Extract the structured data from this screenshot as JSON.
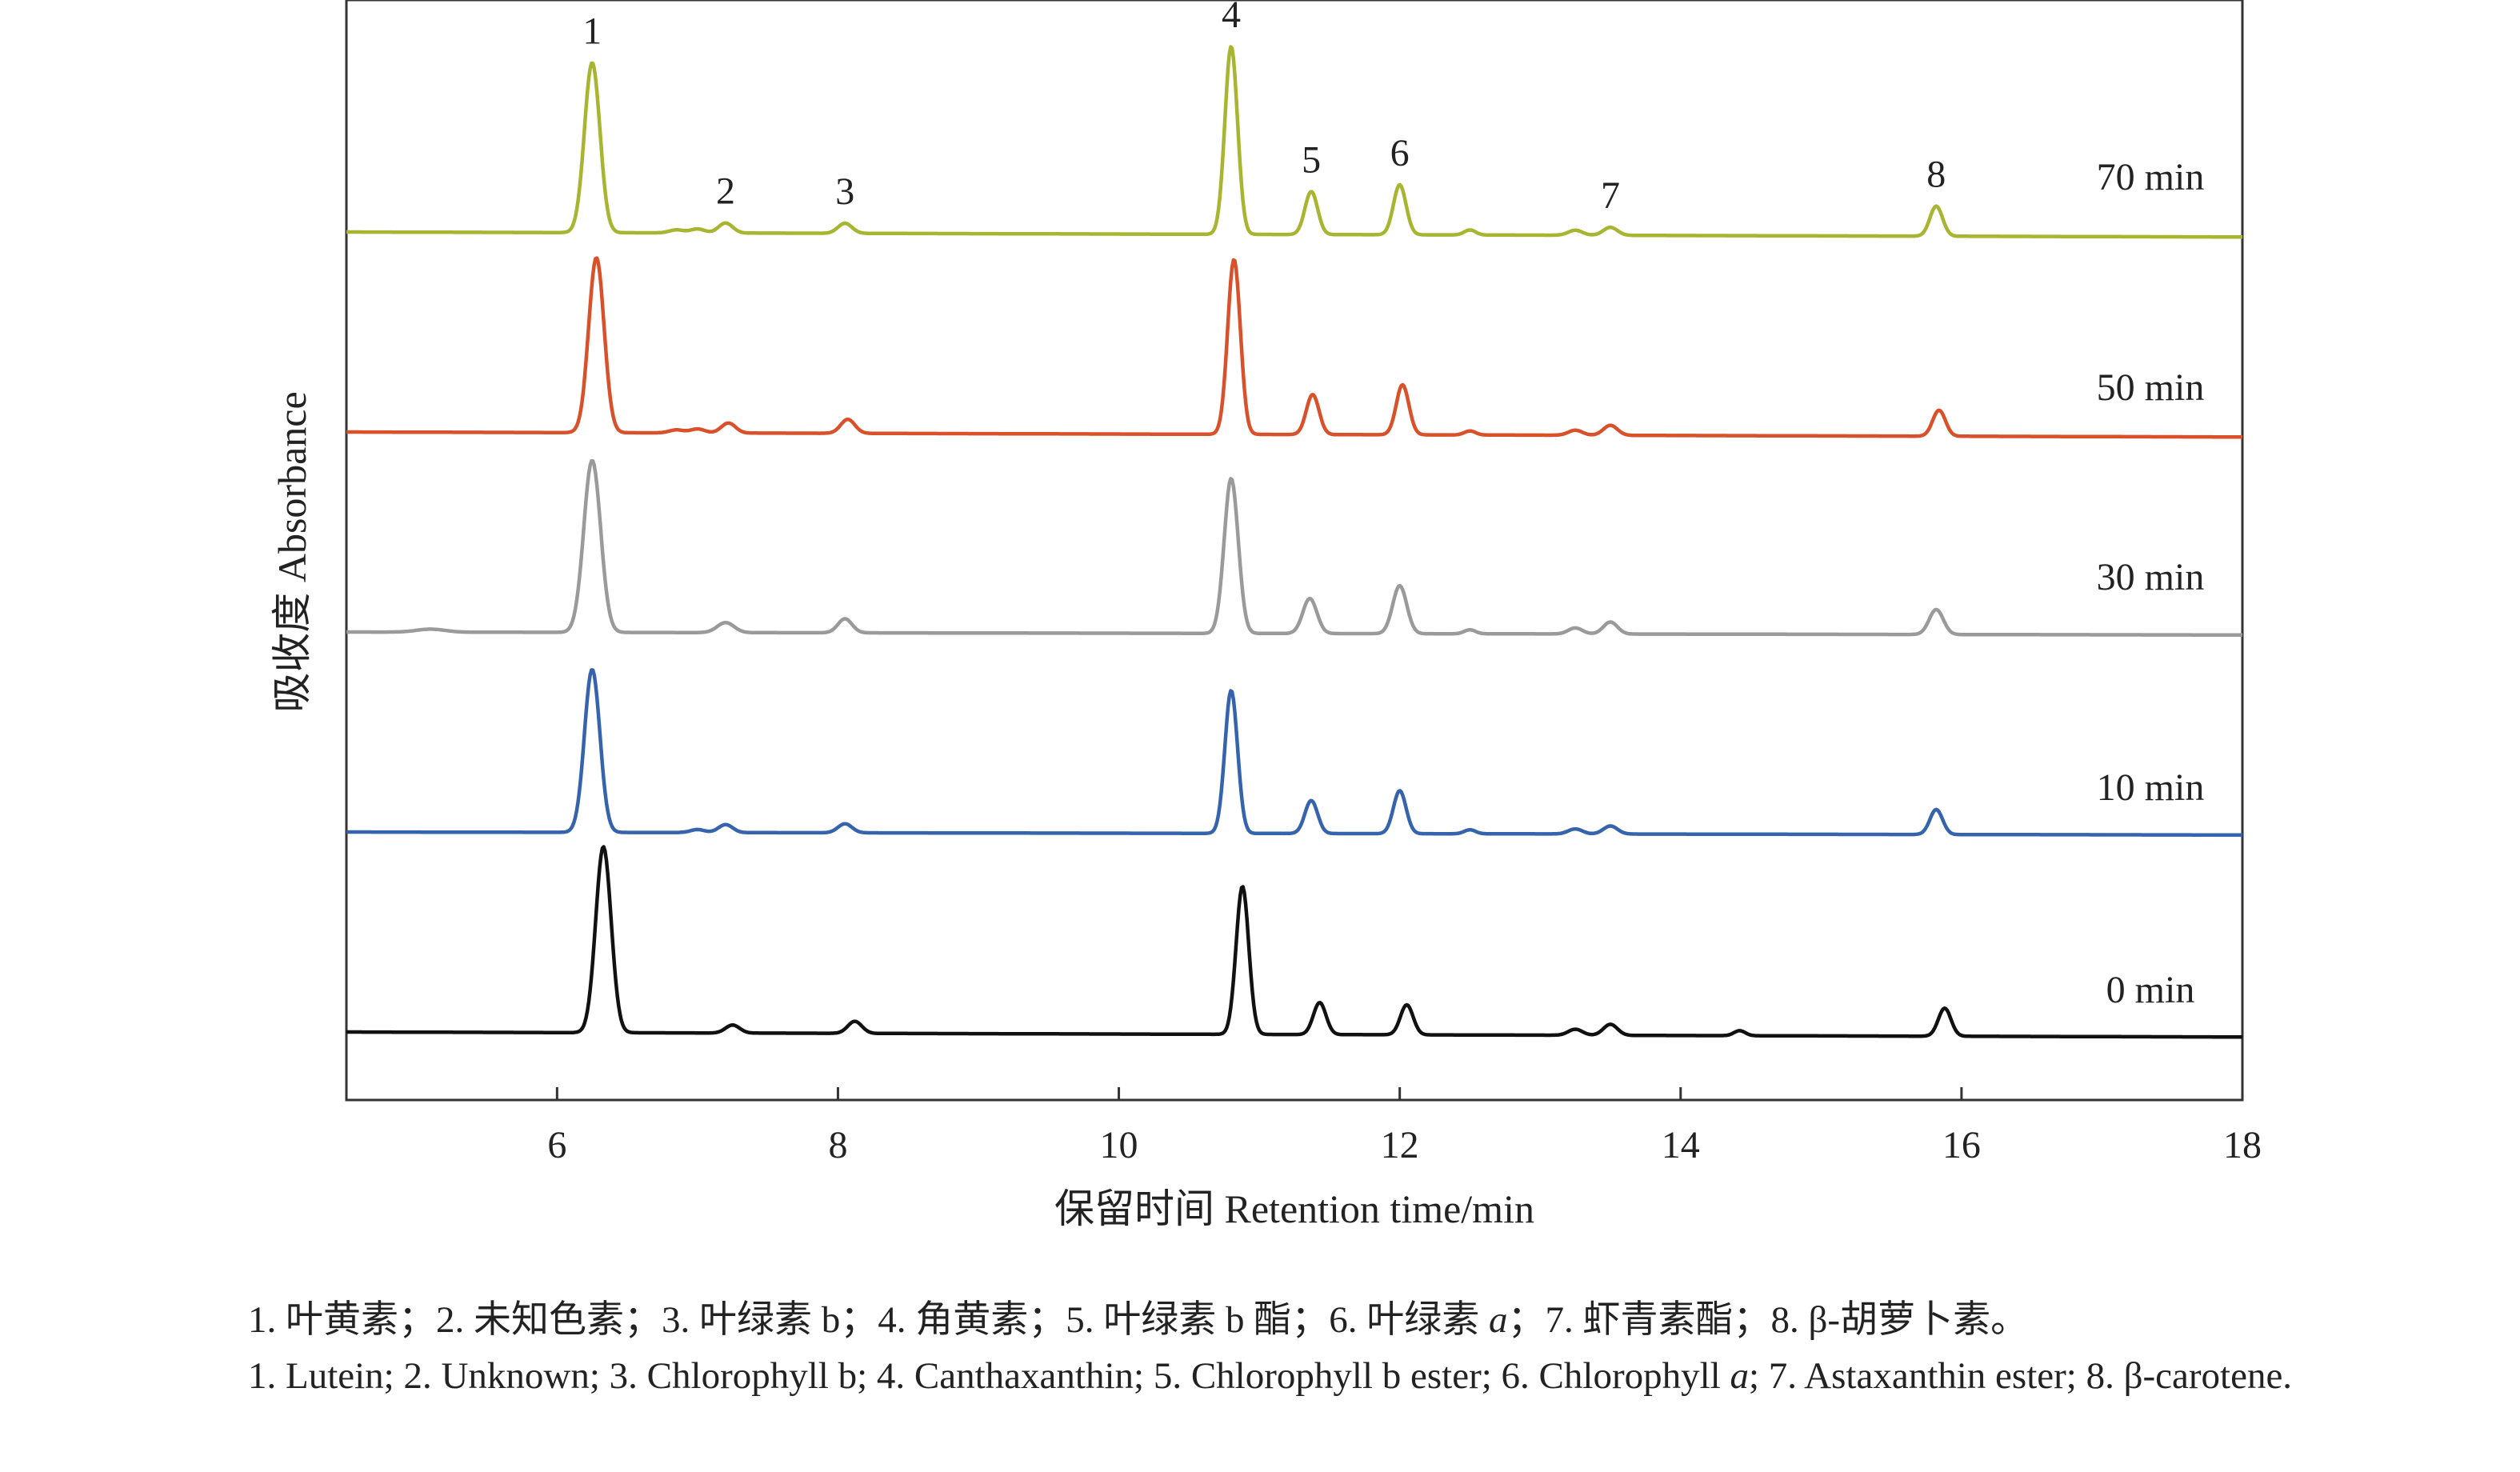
{
  "chart_data": {
    "type": "line",
    "xlabel": "保留时间 Retention time/min",
    "ylabel": "吸收度 Absorbance",
    "xlim": [
      4.5,
      18
    ],
    "x_ticks": [
      6,
      8,
      10,
      12,
      14,
      16,
      18
    ],
    "grid": false,
    "legend": "none",
    "y_scale": "stacked traces, no numeric axis",
    "peak_labels": [
      "1",
      "2",
      "3",
      "4",
      "5",
      "6",
      "7",
      "8"
    ],
    "peak_retention_times_min": [
      6.25,
      7.2,
      8.05,
      10.8,
      11.37,
      12.0,
      13.5,
      15.82
    ],
    "series": [
      {
        "name": "70 min",
        "color": "#a8b531",
        "baseline_start": 0.0,
        "baseline_end": -0.05,
        "peaks": [
          {
            "rt": 6.25,
            "height": 1.7,
            "width": 0.055
          },
          {
            "rt": 6.85,
            "height": 0.03,
            "width": 0.05
          },
          {
            "rt": 7.0,
            "height": 0.04,
            "width": 0.05
          },
          {
            "rt": 7.2,
            "height": 0.1,
            "width": 0.05
          },
          {
            "rt": 8.05,
            "height": 0.1,
            "width": 0.05
          },
          {
            "rt": 10.8,
            "height": 1.88,
            "width": 0.045
          },
          {
            "rt": 11.37,
            "height": 0.43,
            "width": 0.045
          },
          {
            "rt": 12.0,
            "height": 0.5,
            "width": 0.045
          },
          {
            "rt": 12.5,
            "height": 0.05,
            "width": 0.04
          },
          {
            "rt": 13.25,
            "height": 0.05,
            "width": 0.05
          },
          {
            "rt": 13.5,
            "height": 0.08,
            "width": 0.05
          },
          {
            "rt": 15.82,
            "height": 0.3,
            "width": 0.045
          }
        ]
      },
      {
        "name": "50 min",
        "color": "#d9512b",
        "baseline_start": 0.0,
        "baseline_end": -0.05,
        "peaks": [
          {
            "rt": 6.28,
            "height": 1.75,
            "width": 0.055
          },
          {
            "rt": 6.85,
            "height": 0.03,
            "width": 0.05
          },
          {
            "rt": 7.0,
            "height": 0.04,
            "width": 0.05
          },
          {
            "rt": 7.22,
            "height": 0.1,
            "width": 0.05
          },
          {
            "rt": 8.07,
            "height": 0.14,
            "width": 0.05
          },
          {
            "rt": 10.82,
            "height": 1.75,
            "width": 0.045
          },
          {
            "rt": 11.38,
            "height": 0.4,
            "width": 0.045
          },
          {
            "rt": 12.02,
            "height": 0.5,
            "width": 0.045
          },
          {
            "rt": 12.5,
            "height": 0.04,
            "width": 0.04
          },
          {
            "rt": 13.25,
            "height": 0.05,
            "width": 0.05
          },
          {
            "rt": 13.5,
            "height": 0.1,
            "width": 0.05
          },
          {
            "rt": 15.84,
            "height": 0.26,
            "width": 0.045
          }
        ]
      },
      {
        "name": "30 min",
        "color": "#9a9a9a",
        "baseline_start": 0.0,
        "baseline_end": -0.03,
        "peaks": [
          {
            "rt": 5.1,
            "height": 0.03,
            "width": 0.1
          },
          {
            "rt": 6.25,
            "height": 1.72,
            "width": 0.06
          },
          {
            "rt": 7.2,
            "height": 0.1,
            "width": 0.06
          },
          {
            "rt": 8.05,
            "height": 0.14,
            "width": 0.05
          },
          {
            "rt": 10.8,
            "height": 1.55,
            "width": 0.05
          },
          {
            "rt": 11.36,
            "height": 0.35,
            "width": 0.05
          },
          {
            "rt": 12.0,
            "height": 0.48,
            "width": 0.05
          },
          {
            "rt": 12.5,
            "height": 0.04,
            "width": 0.04
          },
          {
            "rt": 13.25,
            "height": 0.06,
            "width": 0.05
          },
          {
            "rt": 13.5,
            "height": 0.12,
            "width": 0.05
          },
          {
            "rt": 15.82,
            "height": 0.25,
            "width": 0.05
          }
        ]
      },
      {
        "name": "10 min",
        "color": "#3563ac",
        "baseline_start": 0.0,
        "baseline_end": -0.03,
        "peaks": [
          {
            "rt": 6.25,
            "height": 1.63,
            "width": 0.055
          },
          {
            "rt": 7.0,
            "height": 0.03,
            "width": 0.05
          },
          {
            "rt": 7.2,
            "height": 0.08,
            "width": 0.05
          },
          {
            "rt": 8.05,
            "height": 0.09,
            "width": 0.05
          },
          {
            "rt": 10.8,
            "height": 1.43,
            "width": 0.045
          },
          {
            "rt": 11.37,
            "height": 0.33,
            "width": 0.045
          },
          {
            "rt": 12.0,
            "height": 0.43,
            "width": 0.045
          },
          {
            "rt": 12.5,
            "height": 0.04,
            "width": 0.04
          },
          {
            "rt": 13.25,
            "height": 0.05,
            "width": 0.05
          },
          {
            "rt": 13.5,
            "height": 0.08,
            "width": 0.05
          },
          {
            "rt": 15.82,
            "height": 0.25,
            "width": 0.045
          }
        ]
      },
      {
        "name": "0 min",
        "color": "#111111",
        "baseline_start": 0.0,
        "baseline_end": -0.05,
        "peaks": [
          {
            "rt": 6.33,
            "height": 1.86,
            "width": 0.055
          },
          {
            "rt": 7.25,
            "height": 0.08,
            "width": 0.05
          },
          {
            "rt": 8.12,
            "height": 0.12,
            "width": 0.05
          },
          {
            "rt": 10.88,
            "height": 1.48,
            "width": 0.045
          },
          {
            "rt": 11.43,
            "height": 0.32,
            "width": 0.045
          },
          {
            "rt": 12.05,
            "height": 0.3,
            "width": 0.045
          },
          {
            "rt": 13.25,
            "height": 0.06,
            "width": 0.05
          },
          {
            "rt": 13.5,
            "height": 0.11,
            "width": 0.05
          },
          {
            "rt": 14.42,
            "height": 0.05,
            "width": 0.04
          },
          {
            "rt": 15.88,
            "height": 0.28,
            "width": 0.045
          }
        ]
      }
    ]
  },
  "caption": {
    "line1_parts": [
      "1. 叶黄素；2. 未知色素；3. 叶绿素 b；4. 角黄素；5. 叶绿素 b 酯；6. 叶绿素 ",
      "a",
      "；7. 虾青素酯；8. β-胡萝卜素。"
    ],
    "line2_parts": [
      "1. Lutein; 2. Unknown; 3. Chlorophyll b; 4. Canthaxanthin; 5. Chlorophyll b ester; 6. Chlorophyll ",
      "a",
      "; 7. Astaxanthin ester; 8. β-carotene."
    ]
  }
}
